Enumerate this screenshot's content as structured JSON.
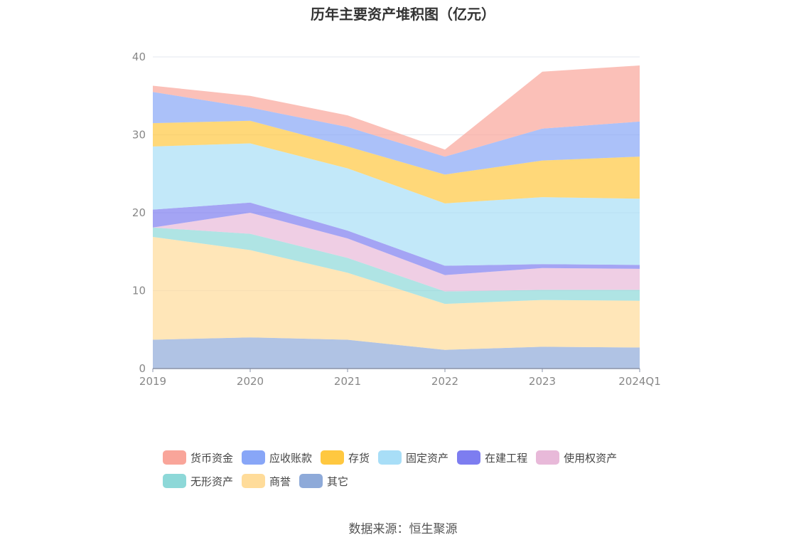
{
  "chart_data": {
    "type": "area",
    "stacked": true,
    "title": "历年主要资产堆积图（亿元）",
    "x": [
      "2019",
      "2020",
      "2021",
      "2022",
      "2023",
      "2024Q1"
    ],
    "ylim": [
      0,
      40
    ],
    "yticks": [
      0,
      10,
      20,
      30,
      40
    ],
    "grid": true,
    "legend_position": "bottom",
    "series": [
      {
        "name": "其它",
        "color": "#8eaad9",
        "values": [
          3.7,
          4.0,
          3.7,
          2.4,
          2.8,
          2.7
        ]
      },
      {
        "name": "商誉",
        "color": "#ffdc9a",
        "values": [
          13.2,
          11.2,
          8.6,
          5.9,
          6.0,
          6.0
        ]
      },
      {
        "name": "无形资产",
        "color": "#8dd8d8",
        "values": [
          1.2,
          2.1,
          1.9,
          1.6,
          1.3,
          1.4
        ]
      },
      {
        "name": "使用权资产",
        "color": "#e8b9d9",
        "values": [
          0.0,
          2.7,
          2.5,
          2.1,
          2.8,
          2.7
        ]
      },
      {
        "name": "在建工程",
        "color": "#7d7df0",
        "values": [
          2.3,
          1.3,
          1.0,
          1.2,
          0.5,
          0.5
        ]
      },
      {
        "name": "固定资产",
        "color": "#a8def7",
        "values": [
          8.1,
          7.6,
          8.0,
          8.0,
          8.6,
          8.5
        ]
      },
      {
        "name": "存货",
        "color": "#ffc840",
        "values": [
          3.0,
          2.9,
          2.8,
          3.7,
          4.7,
          5.4
        ]
      },
      {
        "name": "应收账款",
        "color": "#88a6f7",
        "values": [
          4.0,
          1.7,
          2.5,
          2.3,
          4.1,
          4.5
        ]
      },
      {
        "name": "货币资金",
        "color": "#f9a59a",
        "values": [
          0.8,
          1.5,
          1.5,
          0.9,
          7.3,
          7.2
        ]
      }
    ]
  },
  "legend": {
    "rows": [
      [
        {
          "label": "货币资金",
          "color": "#f9a59a"
        },
        {
          "label": "应收账款",
          "color": "#88a6f7"
        },
        {
          "label": "存货",
          "color": "#ffc840"
        },
        {
          "label": "固定资产",
          "color": "#a8def7"
        },
        {
          "label": "在建工程",
          "color": "#7d7df0"
        },
        {
          "label": "使用权资产",
          "color": "#e8b9d9"
        }
      ],
      [
        {
          "label": "无形资产",
          "color": "#8dd8d8"
        },
        {
          "label": "商誉",
          "color": "#ffdc9a"
        },
        {
          "label": "其它",
          "color": "#8eaad9"
        }
      ]
    ]
  },
  "source_text": "数据来源：恒生聚源"
}
